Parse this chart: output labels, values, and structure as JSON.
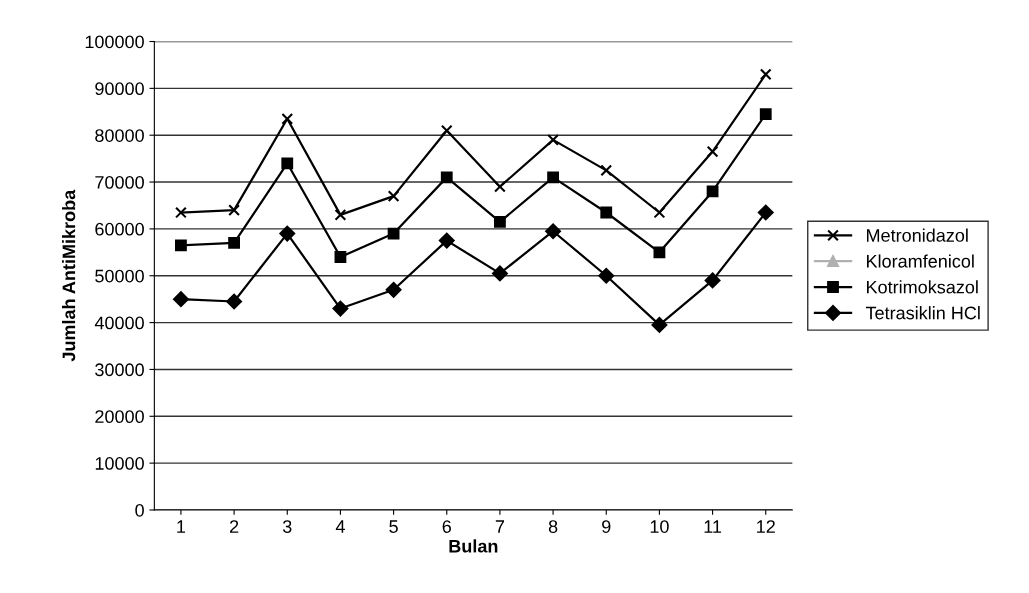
{
  "chart_data": {
    "type": "line",
    "xlabel": "Bulan",
    "ylabel": "Jumlah AntiMikroba",
    "categories": [
      "1",
      "2",
      "3",
      "4",
      "5",
      "6",
      "7",
      "8",
      "9",
      "10",
      "11",
      "12"
    ],
    "series": [
      {
        "name": "Metronidazol",
        "color": "#000000",
        "marker": "cross",
        "values": [
          63500,
          64000,
          83500,
          63000,
          67000,
          81000,
          69000,
          79000,
          72500,
          63500,
          76500,
          93000
        ]
      },
      {
        "name": "Kloramfenicol",
        "color": "#b0b0b0",
        "marker": "triangle",
        "values": [
          null,
          null,
          null,
          null,
          null,
          null,
          null,
          null,
          null,
          null,
          null,
          null
        ]
      },
      {
        "name": "Kotrimoksazol",
        "color": "#000000",
        "marker": "square",
        "values": [
          56500,
          57000,
          74000,
          54000,
          59000,
          71000,
          61500,
          71000,
          63500,
          55000,
          68000,
          84500
        ]
      },
      {
        "name": "Tetrasiklin HCl",
        "color": "#000000",
        "marker": "diamond",
        "values": [
          45000,
          44500,
          59000,
          43000,
          47000,
          57500,
          50500,
          59500,
          50000,
          39500,
          49000,
          63500
        ]
      }
    ],
    "ylim": [
      0,
      100000
    ],
    "yticks": [
      0,
      10000,
      20000,
      30000,
      40000,
      50000,
      60000,
      70000,
      80000,
      90000,
      100000
    ],
    "grid": "y",
    "legend": "right",
    "line_style": "solid"
  }
}
